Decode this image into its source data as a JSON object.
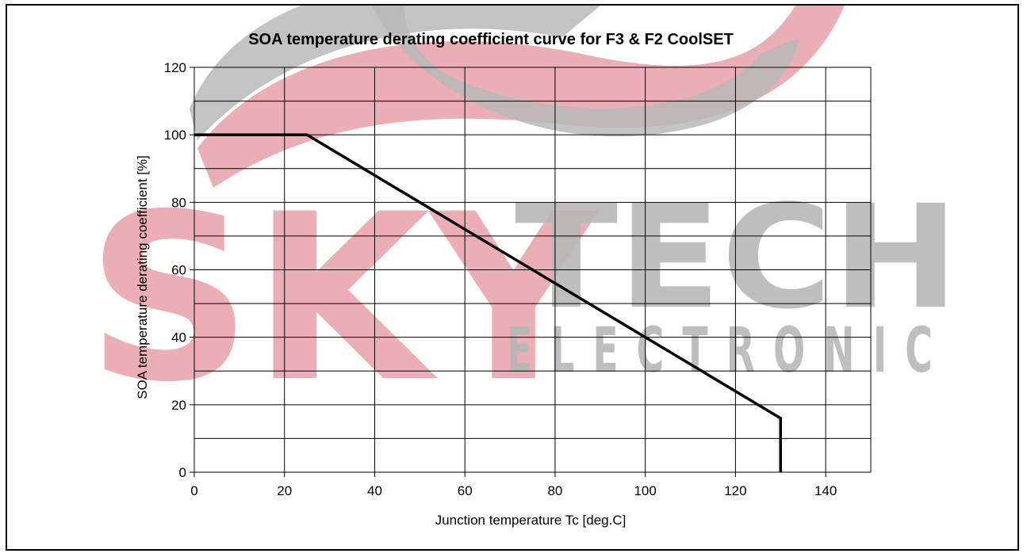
{
  "watermark": {
    "brand_left": "SKY",
    "brand_right": "TECH",
    "sub": "ELECTRONIC",
    "colors": {
      "red": "#e8a0aa",
      "gray": "#b8b8b8"
    }
  },
  "chart_data": {
    "type": "line",
    "title": "SOA temperature derating coefficient curve for F3 & F2 CoolSET",
    "xlabel": "Junction temperature Tc [deg.C]",
    "ylabel": "SOA temperature derating coefficient [%]",
    "xlim": [
      0,
      150
    ],
    "ylim": [
      0,
      120
    ],
    "xticks": [
      0,
      20,
      40,
      60,
      80,
      100,
      120,
      140
    ],
    "yticks": [
      0,
      20,
      40,
      60,
      80,
      100,
      120
    ],
    "grid": true,
    "series": [
      {
        "x": [
          0,
          25,
          130,
          130
        ],
        "y": [
          100,
          100,
          16,
          0
        ],
        "color": "#000000"
      }
    ]
  }
}
